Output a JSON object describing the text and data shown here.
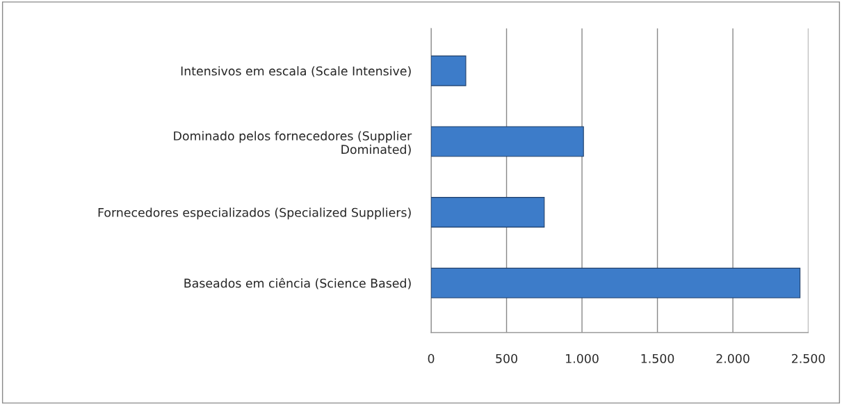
{
  "chart_data": {
    "type": "bar",
    "orientation": "horizontal",
    "categories": [
      "Intensivos em escala (Scale Intensive)",
      "Dominado pelos fornecedores (Supplier\nDominated)",
      "Fornecedores especializados (Specialized Suppliers)",
      "Baseados em ciência (Science Based)"
    ],
    "values": [
      230,
      1010,
      750,
      2445
    ],
    "color": "#3d7cc9",
    "xlim": [
      0,
      2500
    ],
    "xticks": [
      0,
      {
        "value": 500,
        "label": "500"
      },
      {
        "value": 1000,
        "label": "1.000"
      },
      {
        "value": 1500,
        "label": "1.500"
      },
      {
        "value": 2000,
        "label": "2.000"
      },
      {
        "value": 2500,
        "label": "2.500"
      }
    ],
    "grid": "x"
  }
}
